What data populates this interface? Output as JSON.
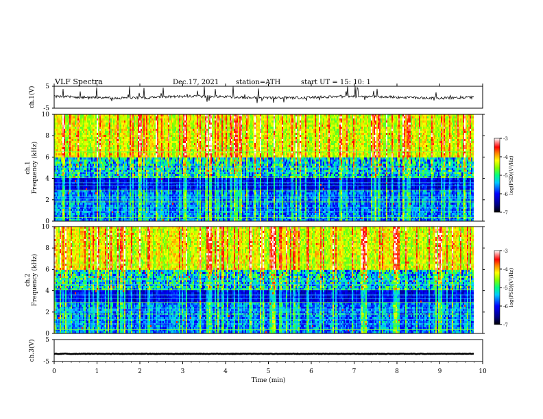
{
  "header": {
    "title": "VLF  Spectra",
    "date": "Dec.17, 2021",
    "station": "station=ATH",
    "start_ut": "start  UT  =    15: 10: 1"
  },
  "colors": {
    "background": "#ffffff",
    "axis": "#000000",
    "colormap": [
      "#000000",
      "#000080",
      "#0000ff",
      "#00c8ff",
      "#00ff80",
      "#80ff00",
      "#ffff00",
      "#ff8000",
      "#ff0000",
      "#ff8080",
      "#ffffff"
    ]
  },
  "chart_data": [
    {
      "type": "line",
      "panel": "ch1-waveform",
      "ylabel": "ch.1(V)",
      "ylim": [
        -5,
        5
      ],
      "yticks": [
        -5,
        5
      ],
      "baseline": 0,
      "description_color": "#000000"
    },
    {
      "type": "heatmap",
      "panel": "ch1-spectrogram",
      "ylabel": "ch.1\nFrequency (kHz)",
      "ylabel_lines": [
        "ch.1",
        "Frequency (kHz)"
      ],
      "ylim": [
        0,
        10
      ],
      "yticks": [
        0,
        2,
        4,
        6,
        8,
        10
      ],
      "colorbar": {
        "label": "log(PSD)(V²/Hz)",
        "range": [
          -7,
          -3
        ],
        "ticks": [
          -7,
          -6,
          -5,
          -4,
          -3
        ]
      }
    },
    {
      "type": "heatmap",
      "panel": "ch2-spectrogram",
      "ylabel": "ch.2\nFrequency (kHz)",
      "ylabel_lines": [
        "ch.2",
        "Frequency (kHz)"
      ],
      "ylim": [
        0,
        10
      ],
      "yticks": [
        0,
        2,
        4,
        6,
        8,
        10
      ],
      "colorbar": {
        "label": "log(PSD)(V²/Hz)",
        "range": [
          -7,
          -3
        ],
        "ticks": [
          -7,
          -6,
          -5,
          -4,
          -3
        ]
      }
    },
    {
      "type": "line",
      "panel": "ch3-waveform",
      "ylabel": "ch.3(V)",
      "ylim": [
        -5,
        5
      ],
      "yticks": [
        -5,
        5
      ],
      "baseline": -1.5
    },
    {
      "type": "axis",
      "panel": "time-axis",
      "xlabel": "Time  (min)",
      "xlim": [
        0,
        10
      ],
      "xticks": [
        0,
        1,
        2,
        3,
        4,
        5,
        6,
        7,
        8,
        9,
        10
      ],
      "data_end": 9.8
    }
  ]
}
